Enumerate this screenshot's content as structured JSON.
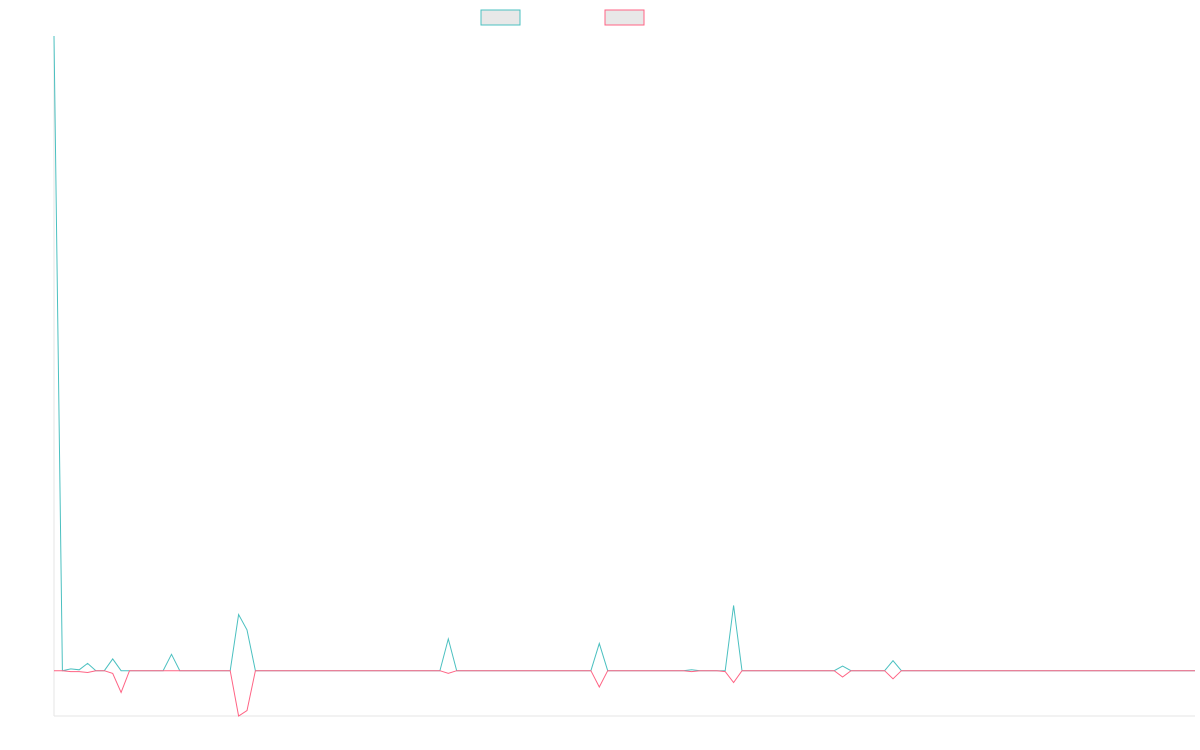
{
  "chart_data": {
    "type": "line",
    "title": "",
    "xlabel": "",
    "ylabel": "",
    "grid": false,
    "legend_position": "top-center",
    "ylim": [
      -5,
      70
    ],
    "x": [
      0,
      1,
      2,
      3,
      4,
      5,
      6,
      7,
      8,
      9,
      10,
      11,
      12,
      13,
      14,
      15,
      16,
      17,
      18,
      19,
      20,
      21,
      22,
      23,
      24,
      25,
      26,
      27,
      28,
      29,
      30,
      31,
      32,
      33,
      34,
      35,
      36,
      37,
      38,
      39,
      40,
      41,
      42,
      43,
      44,
      45,
      46,
      47,
      48,
      49,
      50,
      51,
      52,
      53,
      54,
      55,
      56,
      57,
      58,
      59,
      60,
      61,
      62,
      63,
      64,
      65,
      66,
      67,
      68,
      69,
      70,
      71,
      72,
      73,
      74,
      75,
      76,
      77,
      78,
      79,
      80,
      81,
      82,
      83,
      84,
      85,
      86,
      87,
      88,
      89,
      90,
      91,
      92,
      93,
      94,
      95,
      96,
      97,
      98,
      99,
      100,
      101,
      102,
      103,
      104,
      105,
      106,
      107,
      108,
      109,
      110,
      111,
      112,
      113,
      114,
      115,
      116,
      117,
      118,
      119,
      120,
      121,
      122,
      123,
      124,
      125,
      126,
      127,
      128,
      129,
      130,
      131,
      132,
      133,
      134,
      135,
      136
    ],
    "series": [
      {
        "color": "#4bc0c0",
        "values": [
          70,
          0,
          0.2,
          0.1,
          0.8,
          0,
          0,
          1.3,
          0,
          0,
          0,
          0,
          0,
          0,
          1.8,
          0,
          0,
          0,
          0,
          0,
          0,
          0,
          6.2,
          4.5,
          0,
          0,
          0,
          0,
          0,
          0,
          0,
          0,
          0,
          0,
          0,
          0,
          0,
          0,
          0,
          0,
          0,
          0,
          0,
          0,
          0,
          0,
          0,
          3.5,
          0,
          0,
          0,
          0,
          0,
          0,
          0,
          0,
          0,
          0,
          0,
          0,
          0,
          0,
          0,
          0,
          0,
          3.0,
          0,
          0,
          0,
          0,
          0,
          0,
          0,
          0,
          0,
          0,
          0.1,
          0,
          0,
          0,
          0,
          7.2,
          0,
          0,
          0,
          0,
          0,
          0,
          0,
          0,
          0,
          0,
          0,
          0,
          0.5,
          0,
          0,
          0,
          0,
          0,
          1.1,
          0,
          0,
          0,
          0,
          0,
          0,
          0,
          0,
          0,
          0,
          0,
          0,
          0,
          0,
          0,
          0,
          0,
          0,
          0,
          0,
          0,
          0,
          0,
          0,
          0,
          0,
          0,
          0,
          0,
          0,
          0,
          0,
          0,
          0,
          0,
          0
        ]
      },
      {
        "color": "#ff6384",
        "values": [
          0,
          0,
          -0.1,
          -0.1,
          -0.2,
          0,
          0,
          -0.3,
          -2.4,
          0,
          0,
          0,
          0,
          0,
          0,
          0,
          0,
          0,
          0,
          0,
          0,
          0,
          -5,
          -4.4,
          0,
          0,
          0,
          0,
          0,
          0,
          0,
          0,
          0,
          0,
          0,
          0,
          0,
          0,
          0,
          0,
          0,
          0,
          0,
          0,
          0,
          0,
          0,
          -0.3,
          0,
          0,
          0,
          0,
          0,
          0,
          0,
          0,
          0,
          0,
          0,
          0,
          0,
          0,
          0,
          0,
          0,
          -1.8,
          0,
          0,
          0,
          0,
          0,
          0,
          0,
          0,
          0,
          0,
          -0.1,
          0,
          0,
          0,
          -0.1,
          -1.3,
          0,
          0,
          0,
          0,
          0,
          0,
          0,
          0,
          0,
          0,
          0,
          0,
          -0.7,
          0,
          0,
          0,
          0,
          0,
          -0.9,
          0,
          0,
          0,
          0,
          0,
          0,
          0,
          0,
          0,
          0,
          0,
          0,
          0,
          0,
          0,
          0,
          0,
          0,
          0,
          0,
          0,
          0,
          0,
          0,
          0,
          0,
          0,
          0,
          0,
          0,
          0,
          0,
          0,
          0,
          0,
          0
        ]
      }
    ]
  }
}
